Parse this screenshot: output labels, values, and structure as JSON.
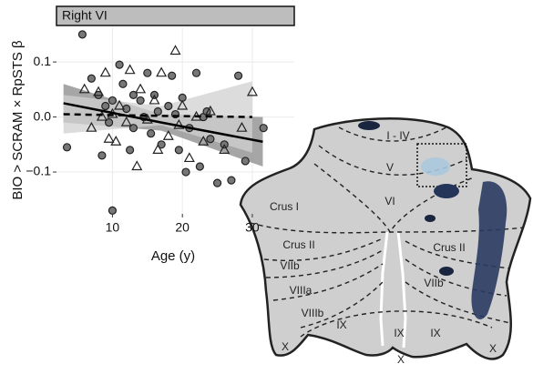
{
  "chart_data": {
    "type": "scatter",
    "strip": "Right VI",
    "xlabel": "Age (y)",
    "ylabel": "BIO > SCRAM × RpSTS β",
    "xlim": [
      2,
      36
    ],
    "ylim": [
      -0.176,
      0.163
    ],
    "xticks": [
      10,
      20,
      30
    ],
    "yticks": [
      0.1,
      {
        "value": 0,
        "label": "0.0"
      },
      {
        "value": -0.1,
        "label": "−0.1"
      }
    ],
    "grid": true,
    "series": [
      {
        "marker": "circle",
        "color": "#777777",
        "x": [
          5.7,
          3.5,
          7,
          8,
          9,
          9.5,
          10,
          11,
          11.5,
          12,
          13,
          13,
          14,
          14.5,
          15,
          15.5,
          16,
          16.5,
          17,
          18,
          18.5,
          19,
          19.5,
          20,
          21,
          22,
          22.5,
          23,
          24,
          25,
          26,
          27,
          28,
          29,
          31.6,
          10,
          8.5,
          12.5,
          20.5,
          23.5
        ],
        "values": [
          0.15,
          -0.055,
          0.07,
          0.04,
          0.02,
          -0.01,
          0.03,
          0.095,
          0.06,
          0.015,
          0.04,
          -0.02,
          0.03,
          0,
          0.08,
          -0.03,
          0.04,
          0.01,
          -0.05,
          0.02,
          0.075,
          0.005,
          -0.06,
          0.035,
          -0.02,
          0.08,
          -0.09,
          0,
          -0.04,
          -0.12,
          -0.05,
          -0.115,
          0.075,
          -0.08,
          -0.02,
          -0.17,
          -0.07,
          -0.06,
          -0.1,
          0.01
        ]
      },
      {
        "marker": "triangle",
        "color": "none",
        "x": [
          6,
          7,
          8,
          8.5,
          9,
          9.5,
          10,
          10.5,
          11,
          12,
          12.5,
          13.5,
          14,
          15,
          16,
          16.5,
          17,
          18,
          19,
          19.5,
          20,
          21,
          22,
          23,
          24,
          26,
          30,
          28.5
        ],
        "values": [
          0.05,
          -0.02,
          0.045,
          0,
          0.08,
          -0.04,
          0.005,
          -0.045,
          0.02,
          -0.01,
          0.085,
          -0.09,
          0.05,
          -0.005,
          0.03,
          -0.06,
          0.08,
          -0.035,
          0.12,
          -0.015,
          0.02,
          -0.075,
          0,
          -0.045,
          0.01,
          -0.06,
          0.045,
          -0.02
        ]
      }
    ],
    "fits": [
      {
        "style": "solid",
        "band": "#888888",
        "x": [
          3,
          17,
          31.5
        ],
        "y": [
          0.025,
          -0.01,
          -0.045
        ],
        "lower": [
          -0.01,
          -0.025,
          -0.09
        ],
        "upper": [
          0.06,
          0.005,
          0
        ]
      },
      {
        "style": "dashed",
        "band": "#d0d0d0",
        "x": [
          3,
          17,
          30
        ],
        "y": [
          0.005,
          0.002,
          0
        ],
        "lower": [
          -0.03,
          -0.015,
          -0.065
        ],
        "upper": [
          0.04,
          0.02,
          0.065
        ]
      }
    ]
  },
  "flatmap": {
    "labels": [
      "I - IV",
      "V",
      "VI",
      "Crus I",
      "Crus II",
      "VIIb",
      "VIIIa",
      "VIIIb",
      "IX",
      "X",
      "Crus II",
      "VIIb",
      "IX",
      "IX",
      "X",
      "X"
    ]
  }
}
